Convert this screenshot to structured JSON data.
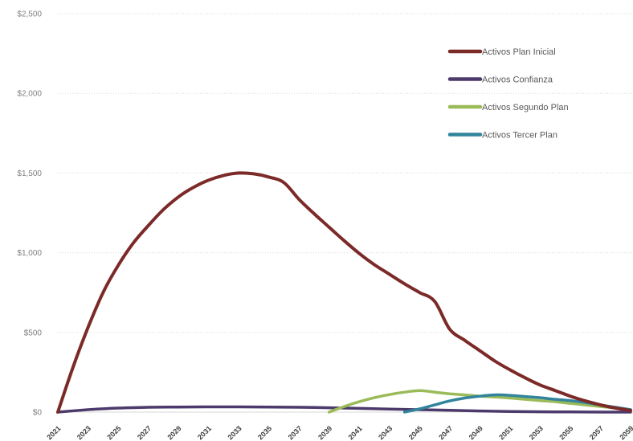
{
  "chart_data": {
    "type": "line",
    "title": "",
    "xlabel": "",
    "ylabel": "",
    "ylim": [
      0,
      2500
    ],
    "yticks": [
      0,
      500,
      1000,
      1500,
      2000,
      2500
    ],
    "ytick_labels": [
      "$0",
      "$500",
      "$1,000",
      "$1,500",
      "$2,000",
      "$2,500"
    ],
    "xlim": [
      2021,
      2059
    ],
    "xtick_labels": [
      "2021",
      "2023",
      "2025",
      "2027",
      "2029",
      "2031",
      "2033",
      "2035",
      "2037",
      "2039",
      "2041",
      "2043",
      "2045",
      "2047",
      "2049",
      "2051",
      "2053",
      "2055",
      "2057",
      "2059"
    ],
    "grid": true,
    "legend_position": "top-right",
    "series": [
      {
        "name": "Activos Plan Inicial",
        "color": "#7b2a28",
        "points": [
          [
            2021,
            0
          ],
          [
            2022,
            280
          ],
          [
            2023,
            530
          ],
          [
            2024,
            750
          ],
          [
            2025,
            920
          ],
          [
            2026,
            1060
          ],
          [
            2027,
            1170
          ],
          [
            2028,
            1270
          ],
          [
            2029,
            1350
          ],
          [
            2030,
            1410
          ],
          [
            2031,
            1455
          ],
          [
            2032,
            1485
          ],
          [
            2033,
            1500
          ],
          [
            2034,
            1495
          ],
          [
            2035,
            1475
          ],
          [
            2036,
            1440
          ],
          [
            2037,
            1335
          ],
          [
            2038,
            1245
          ],
          [
            2039,
            1160
          ],
          [
            2040,
            1075
          ],
          [
            2041,
            995
          ],
          [
            2042,
            925
          ],
          [
            2043,
            865
          ],
          [
            2044,
            805
          ],
          [
            2045,
            750
          ],
          [
            2046,
            695
          ],
          [
            2047,
            520
          ],
          [
            2048,
            450
          ],
          [
            2049,
            385
          ],
          [
            2050,
            320
          ],
          [
            2051,
            265
          ],
          [
            2052,
            215
          ],
          [
            2053,
            170
          ],
          [
            2054,
            135
          ],
          [
            2055,
            100
          ],
          [
            2056,
            70
          ],
          [
            2057,
            45
          ],
          [
            2058,
            25
          ],
          [
            2059,
            10
          ]
        ]
      },
      {
        "name": "Activos Confianza",
        "color": "#4b3a6b",
        "points": [
          [
            2021,
            0
          ],
          [
            2023,
            15
          ],
          [
            2025,
            25
          ],
          [
            2027,
            30
          ],
          [
            2029,
            32
          ],
          [
            2031,
            33
          ],
          [
            2033,
            33
          ],
          [
            2035,
            32
          ],
          [
            2037,
            30
          ],
          [
            2039,
            27
          ],
          [
            2041,
            23
          ],
          [
            2043,
            19
          ],
          [
            2045,
            15
          ],
          [
            2047,
            11
          ],
          [
            2049,
            7
          ],
          [
            2051,
            4
          ],
          [
            2053,
            2
          ],
          [
            2055,
            1
          ],
          [
            2057,
            0
          ],
          [
            2059,
            0
          ]
        ]
      },
      {
        "name": "Activos Segundo Plan",
        "color": "#9bbb59",
        "points": [
          [
            2039,
            0
          ],
          [
            2040,
            35
          ],
          [
            2041,
            65
          ],
          [
            2042,
            90
          ],
          [
            2043,
            110
          ],
          [
            2044,
            125
          ],
          [
            2045,
            135
          ],
          [
            2046,
            125
          ],
          [
            2047,
            115
          ],
          [
            2048,
            108
          ],
          [
            2049,
            100
          ],
          [
            2050,
            95
          ],
          [
            2051,
            88
          ],
          [
            2052,
            80
          ],
          [
            2053,
            72
          ],
          [
            2054,
            65
          ],
          [
            2055,
            55
          ],
          [
            2056,
            45
          ],
          [
            2057,
            35
          ],
          [
            2058,
            25
          ],
          [
            2059,
            15
          ]
        ]
      },
      {
        "name": "Activos Tercer Plan",
        "color": "#31849b",
        "points": [
          [
            2044,
            0
          ],
          [
            2045,
            20
          ],
          [
            2046,
            45
          ],
          [
            2047,
            70
          ],
          [
            2048,
            88
          ],
          [
            2049,
            100
          ],
          [
            2050,
            108
          ],
          [
            2051,
            105
          ],
          [
            2052,
            98
          ],
          [
            2053,
            90
          ],
          [
            2054,
            80
          ],
          [
            2055,
            72
          ],
          [
            2056,
            60
          ],
          [
            2057,
            45
          ],
          [
            2058,
            30
          ],
          [
            2059,
            15
          ]
        ]
      }
    ]
  }
}
